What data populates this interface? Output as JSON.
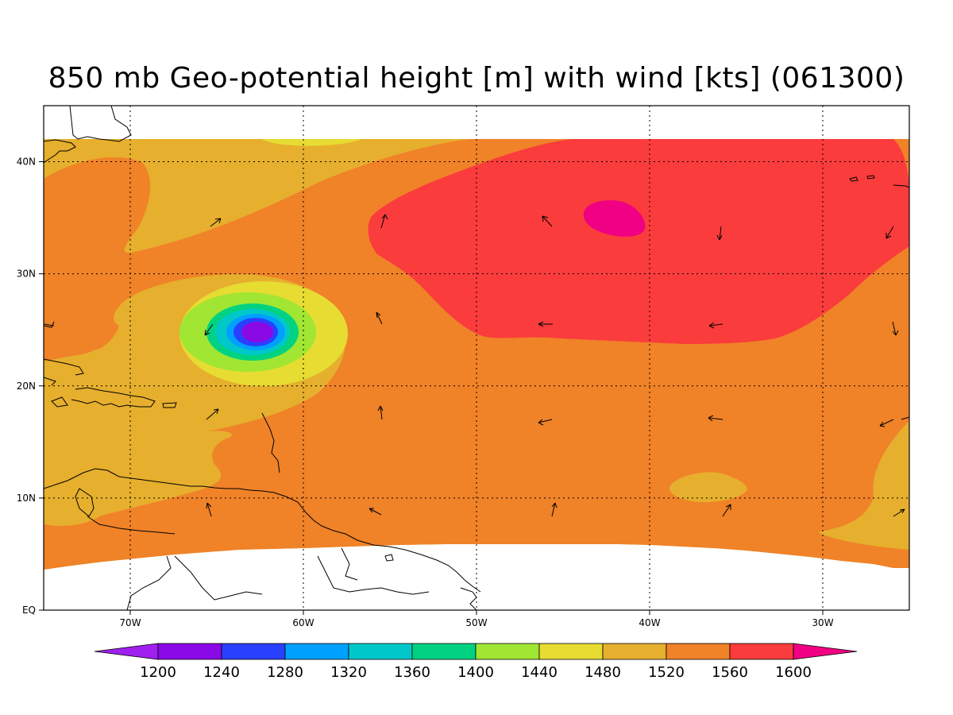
{
  "title": "850 mb Geo-potential height [m] with wind [kts] (061300)",
  "map": {
    "lon_range": [
      -75,
      -25
    ],
    "lat_range": [
      0,
      45
    ],
    "lon_ticks": [
      {
        "value": -70,
        "label": "70W"
      },
      {
        "value": -60,
        "label": "60W"
      },
      {
        "value": -50,
        "label": "50W"
      },
      {
        "value": -40,
        "label": "40W"
      },
      {
        "value": -30,
        "label": "30W"
      }
    ],
    "lat_ticks": [
      {
        "value": 0,
        "label": "EQ"
      },
      {
        "value": 10,
        "label": "10N"
      },
      {
        "value": 20,
        "label": "20N"
      },
      {
        "value": 30,
        "label": "30N"
      },
      {
        "value": 40,
        "label": "40N"
      }
    ],
    "grid": "dotted"
  },
  "colorbar": {
    "levels": [
      "1200",
      "1240",
      "1280",
      "1320",
      "1360",
      "1400",
      "1440",
      "1480",
      "1520",
      "1560",
      "1600"
    ],
    "colors": [
      "#a020f0",
      "#8a0ae6",
      "#2a40ff",
      "#00a0ff",
      "#00c8c8",
      "#00d282",
      "#a0e632",
      "#e6dc32",
      "#e6af2d",
      "#f08228",
      "#fa3c3c",
      "#f00082"
    ]
  },
  "field_colors": {
    "c1480": "#e6dc32",
    "c1520": "#e6af2d",
    "c1560": "#f08228",
    "c1600": "#fa3c3c",
    "c1600p": "#f00082",
    "c1440": "#a0e632",
    "c1400": "#00d282",
    "c1360": "#00c8c8",
    "c1320": "#00a0ff",
    "c1280": "#2a40ff",
    "c1240": "#8a0ae6"
  }
}
